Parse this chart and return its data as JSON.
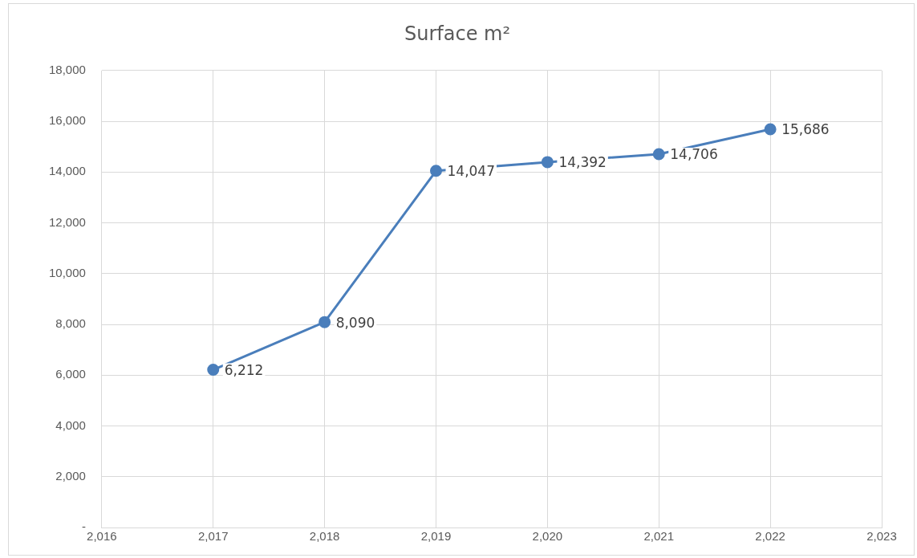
{
  "chart_data": {
    "type": "line",
    "title": "Surface m²",
    "x": [
      2017,
      2018,
      2019,
      2020,
      2021,
      2022
    ],
    "series": [
      {
        "color": "#4a7ebb",
        "values": [
          6212,
          8090,
          14047,
          14392,
          14706,
          15686
        ],
        "value_labels": [
          "6,212",
          "8,090",
          "14,047",
          "14,392",
          "14,706",
          "15,686"
        ]
      }
    ],
    "xlim": [
      2016,
      2023
    ],
    "xticks": [
      {
        "value": 2016,
        "label": "2,016"
      },
      {
        "value": 2017,
        "label": "2,017"
      },
      {
        "value": 2018,
        "label": "2,018"
      },
      {
        "value": 2019,
        "label": "2,019"
      },
      {
        "value": 2020,
        "label": "2,020"
      },
      {
        "value": 2021,
        "label": "2,021"
      },
      {
        "value": 2022,
        "label": "2,022"
      },
      {
        "value": 2023,
        "label": "2,023"
      }
    ],
    "ylim": [
      0,
      18000
    ],
    "yticks": [
      {
        "value": 0,
        "label": "-"
      },
      {
        "value": 2000,
        "label": "2,000"
      },
      {
        "value": 4000,
        "label": "4,000"
      },
      {
        "value": 6000,
        "label": "6,000"
      },
      {
        "value": 8000,
        "label": "8,000"
      },
      {
        "value": 10000,
        "label": "10,000"
      },
      {
        "value": 12000,
        "label": "12,000"
      },
      {
        "value": 14000,
        "label": "14,000"
      },
      {
        "value": 16000,
        "label": "16,000"
      },
      {
        "value": 18000,
        "label": "18,000"
      }
    ],
    "grid": true,
    "legend": false,
    "marker": "circle",
    "line_style": "solid"
  }
}
